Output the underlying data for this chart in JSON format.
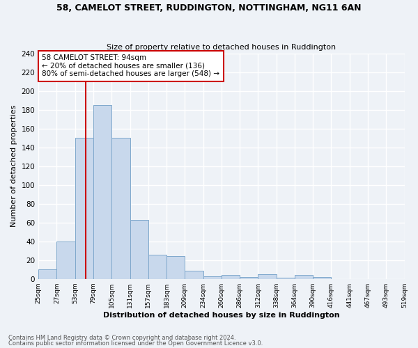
{
  "title1": "58, CAMELOT STREET, RUDDINGTON, NOTTINGHAM, NG11 6AN",
  "title2": "Size of property relative to detached houses in Ruddington",
  "xlabel": "Distribution of detached houses by size in Ruddington",
  "ylabel": "Number of detached properties",
  "bar_values": [
    10,
    40,
    150,
    185,
    150,
    63,
    26,
    24,
    9,
    3,
    4,
    2,
    5,
    1,
    4,
    2,
    0,
    0,
    0,
    0
  ],
  "n_bins": 20,
  "bin_labels": [
    "25sqm",
    "27sqm",
    "53sqm",
    "79sqm",
    "105sqm",
    "131sqm",
    "157sqm",
    "183sqm",
    "209sqm",
    "234sqm",
    "260sqm",
    "286sqm",
    "312sqm",
    "338sqm",
    "364sqm",
    "390sqm",
    "416sqm",
    "441sqm",
    "467sqm",
    "493sqm",
    "519sqm"
  ],
  "property_label": "58 CAMELOT STREET: 94sqm",
  "annotation_line1": "← 20% of detached houses are smaller (136)",
  "annotation_line2": "80% of semi-detached houses are larger (548) →",
  "bar_color": "#c8d8ec",
  "bar_edgecolor": "#7fa8cc",
  "vline_color": "#cc0000",
  "box_edgecolor": "#cc0000",
  "background_color": "#eef2f7",
  "grid_color": "#ffffff",
  "ylim": [
    0,
    240
  ],
  "yticks": [
    0,
    20,
    40,
    60,
    80,
    100,
    120,
    140,
    160,
    180,
    200,
    220,
    240
  ],
  "vline_bin": 2.6,
  "footnote1": "Contains HM Land Registry data © Crown copyright and database right 2024.",
  "footnote2": "Contains public sector information licensed under the Open Government Licence v3.0."
}
